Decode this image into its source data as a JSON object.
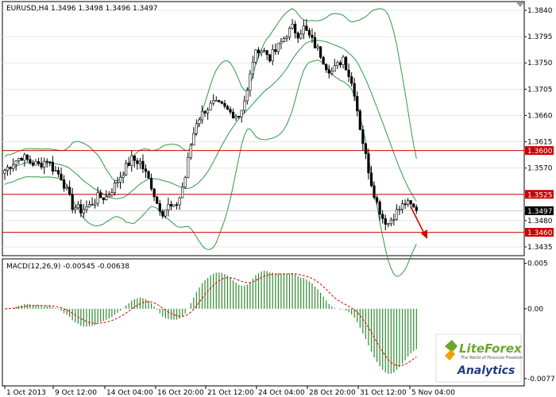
{
  "chart_data": {
    "type": "candlestick",
    "symbol_header": "EURUSD,H4  1.3496 1.3498 1.3496 1.3497",
    "price_axis": {
      "ylim": [
        1.342,
        1.3855
      ],
      "ticks": [
        "1.3840",
        "1.3795",
        "1.3750",
        "1.3705",
        "1.3660",
        "1.3615",
        "1.3570",
        "1.3480",
        "1.3435"
      ]
    },
    "levels": [
      {
        "value": 1.36,
        "label": "1.3600",
        "color": "#cc0000"
      },
      {
        "value": 1.3525,
        "label": "1.3525",
        "color": "#cc0000"
      },
      {
        "value": 1.346,
        "label": "1.3460",
        "color": "#cc0000"
      }
    ],
    "current_price": {
      "value": 1.3497,
      "label": "1.3497"
    },
    "time_axis": [
      "1 Oct 2013",
      "9 Oct 12:00",
      "14 Oct 04:00",
      "16 Oct 20:00",
      "21 Oct 12:00",
      "24 Oct 04:00",
      "28 Oct 20:00",
      "31 Oct 12:00",
      "5 Nov 04:00"
    ],
    "price_path": [
      [
        0,
        1.3566
      ],
      [
        3,
        1.358
      ],
      [
        6,
        1.359
      ],
      [
        9,
        1.358
      ],
      [
        12,
        1.3575
      ],
      [
        15,
        1.3585
      ],
      [
        17,
        1.357
      ],
      [
        20,
        1.3555
      ],
      [
        22,
        1.353
      ],
      [
        24,
        1.3505
      ],
      [
        27,
        1.3498
      ],
      [
        30,
        1.3505
      ],
      [
        33,
        1.352
      ],
      [
        36,
        1.352
      ],
      [
        39,
        1.354
      ],
      [
        42,
        1.3565
      ],
      [
        45,
        1.3585
      ],
      [
        48,
        1.358
      ],
      [
        50,
        1.356
      ],
      [
        52,
        1.354
      ],
      [
        54,
        1.351
      ],
      [
        56,
        1.3495
      ],
      [
        58,
        1.3505
      ],
      [
        60,
        1.35
      ],
      [
        62,
        1.352
      ],
      [
        64,
        1.3555
      ],
      [
        66,
        1.361
      ],
      [
        68,
        1.365
      ],
      [
        71,
        1.367
      ],
      [
        74,
        1.368
      ],
      [
        77,
        1.3675
      ],
      [
        80,
        1.3665
      ],
      [
        83,
        1.366
      ],
      [
        86,
        1.37
      ],
      [
        88,
        1.3755
      ],
      [
        90,
        1.3775
      ],
      [
        92,
        1.377
      ],
      [
        94,
        1.376
      ],
      [
        96,
        1.377
      ],
      [
        98,
        1.3785
      ],
      [
        100,
        1.38
      ],
      [
        102,
        1.381
      ],
      [
        104,
        1.38
      ],
      [
        106,
        1.381
      ],
      [
        108,
        1.3795
      ],
      [
        110,
        1.378
      ],
      [
        112,
        1.3765
      ],
      [
        114,
        1.3745
      ],
      [
        116,
        1.3735
      ],
      [
        118,
        1.3745
      ],
      [
        120,
        1.376
      ],
      [
        122,
        1.373
      ],
      [
        124,
        1.37
      ],
      [
        126,
        1.364
      ],
      [
        128,
        1.359
      ],
      [
        130,
        1.3545
      ],
      [
        132,
        1.351
      ],
      [
        134,
        1.3485
      ],
      [
        136,
        1.3475
      ],
      [
        138,
        1.349
      ],
      [
        140,
        1.35
      ],
      [
        142,
        1.351
      ],
      [
        144,
        1.3505
      ],
      [
        146,
        1.3497
      ]
    ],
    "bollinger": {
      "period": 20,
      "k": 2
    },
    "macd": {
      "label": "MACD(12,26,9) -0.00545 -0.00638",
      "ylim": [
        -0.0085,
        0.0055
      ],
      "ticks": [
        "0.005",
        "0.00",
        "-0.0077"
      ],
      "tick_values": [
        0.005,
        0.0,
        -0.0077
      ]
    }
  },
  "logo": {
    "brand": "LiteForex",
    "tagline": "The World of Financial Freedom",
    "product": "Analytics"
  }
}
